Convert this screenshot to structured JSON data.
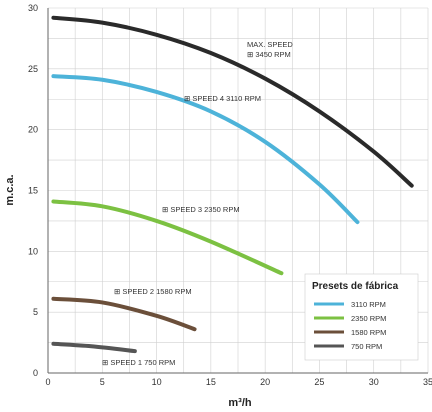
{
  "chart_data": {
    "type": "line",
    "xlabel": "m³/h",
    "ylabel": "m.c.a.",
    "xlim": [
      0,
      35
    ],
    "ylim": [
      0,
      30
    ],
    "xticks": [
      "0",
      "5",
      "10",
      "15",
      "20",
      "25",
      "30",
      "35"
    ],
    "yticks": [
      "0",
      "5",
      "10",
      "15",
      "20",
      "25",
      "30"
    ],
    "grid": true,
    "legend": {
      "title": "Presets de fábrica",
      "placement": "bottom-right",
      "entries": [
        "3110 RPM",
        "2350 RPM",
        "1580 RPM",
        "750 RPM"
      ]
    },
    "series": [
      {
        "annotation_line1": "MAX. SPEED",
        "annotation_line2": "⊞ 3450 RPM",
        "color": "#2a2a2a",
        "x": [
          0.5,
          5,
          10,
          15,
          20,
          25,
          30,
          33.5
        ],
        "y": [
          29.2,
          28.8,
          27.8,
          26.3,
          24.2,
          21.5,
          18.2,
          15.4
        ]
      },
      {
        "annotation_line1": "⊞ SPEED 4  3110 RPM",
        "color": "#4db3d9",
        "x": [
          0.5,
          5,
          10,
          15,
          20,
          25,
          28.5
        ],
        "y": [
          24.4,
          24.1,
          23.1,
          21.5,
          19.0,
          15.5,
          12.4
        ]
      },
      {
        "annotation_line1": "⊞ SPEED 3  2350 RPM",
        "color": "#7cc142",
        "x": [
          0.5,
          5,
          10,
          15,
          21.5
        ],
        "y": [
          14.1,
          13.7,
          12.5,
          10.8,
          8.2
        ]
      },
      {
        "annotation_line1": "⊞ SPEED 2  1580 RPM",
        "color": "#6b4f3a",
        "x": [
          0.5,
          5,
          10,
          13.5
        ],
        "y": [
          6.1,
          5.8,
          4.7,
          3.6
        ]
      },
      {
        "annotation_line1": "⊞ SPEED 1  750 RPM",
        "color": "#555555",
        "x": [
          0.5,
          4,
          8
        ],
        "y": [
          2.4,
          2.2,
          1.8
        ]
      }
    ],
    "legend_colors": [
      "#4db3d9",
      "#7cc142",
      "#6b4f3a",
      "#555555"
    ]
  }
}
